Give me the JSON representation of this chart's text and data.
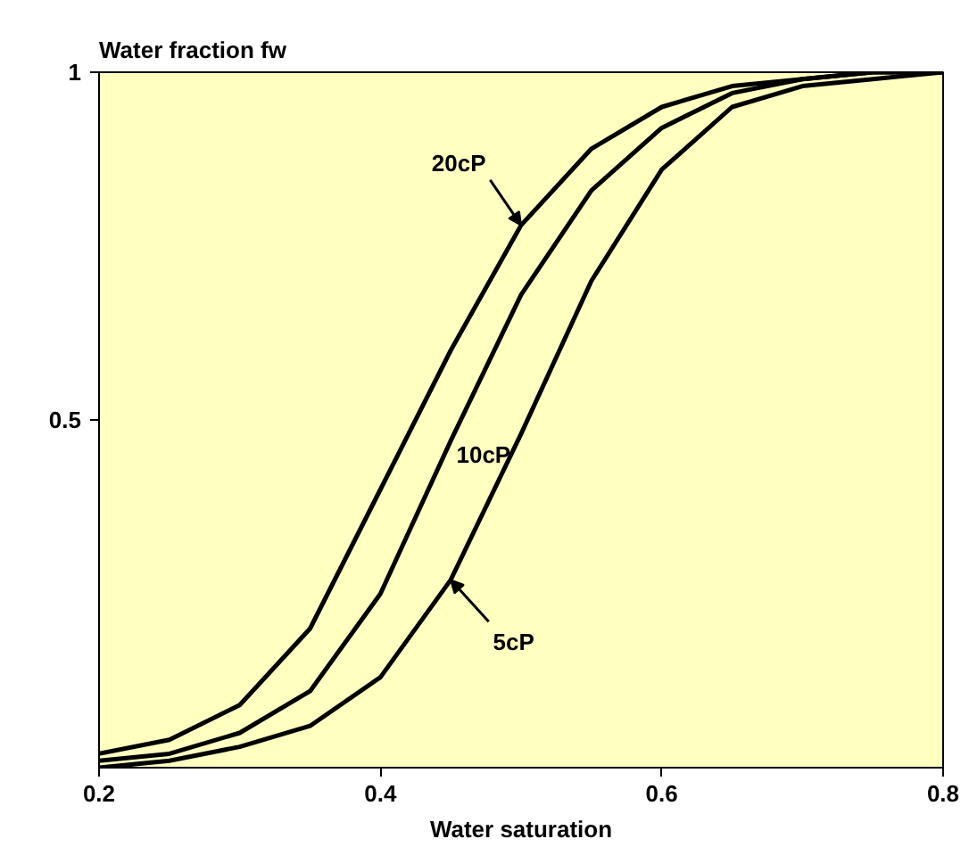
{
  "chart_data": {
    "type": "line",
    "ylabel": "Water fraction fw",
    "xlabel": "Water saturation",
    "x": [
      0.2,
      0.25,
      0.3,
      0.35,
      0.4,
      0.45,
      0.5,
      0.55,
      0.6,
      0.65,
      0.7,
      0.75,
      0.8
    ],
    "series": [
      {
        "name": "20cP",
        "color": "#000000",
        "values": [
          0.02,
          0.04,
          0.09,
          0.2,
          0.4,
          0.6,
          0.78,
          0.89,
          0.95,
          0.98,
          0.99,
          1.0,
          1.0
        ]
      },
      {
        "name": "10cP",
        "color": "#000000",
        "values": [
          0.01,
          0.02,
          0.05,
          0.11,
          0.25,
          0.47,
          0.68,
          0.83,
          0.92,
          0.97,
          0.99,
          1.0,
          1.0
        ]
      },
      {
        "name": "5cP",
        "color": "#000000",
        "values": [
          0.0,
          0.01,
          0.03,
          0.06,
          0.13,
          0.27,
          0.48,
          0.7,
          0.86,
          0.95,
          0.98,
          0.99,
          1.0
        ]
      }
    ],
    "xlim": [
      0.2,
      0.8
    ],
    "ylim": [
      0,
      1
    ],
    "xticks": [
      0.2,
      0.4,
      0.6,
      0.8
    ],
    "yticks": [
      0.5,
      1
    ],
    "grid": false,
    "legend": false,
    "marker": "none",
    "line_style": "solid"
  }
}
